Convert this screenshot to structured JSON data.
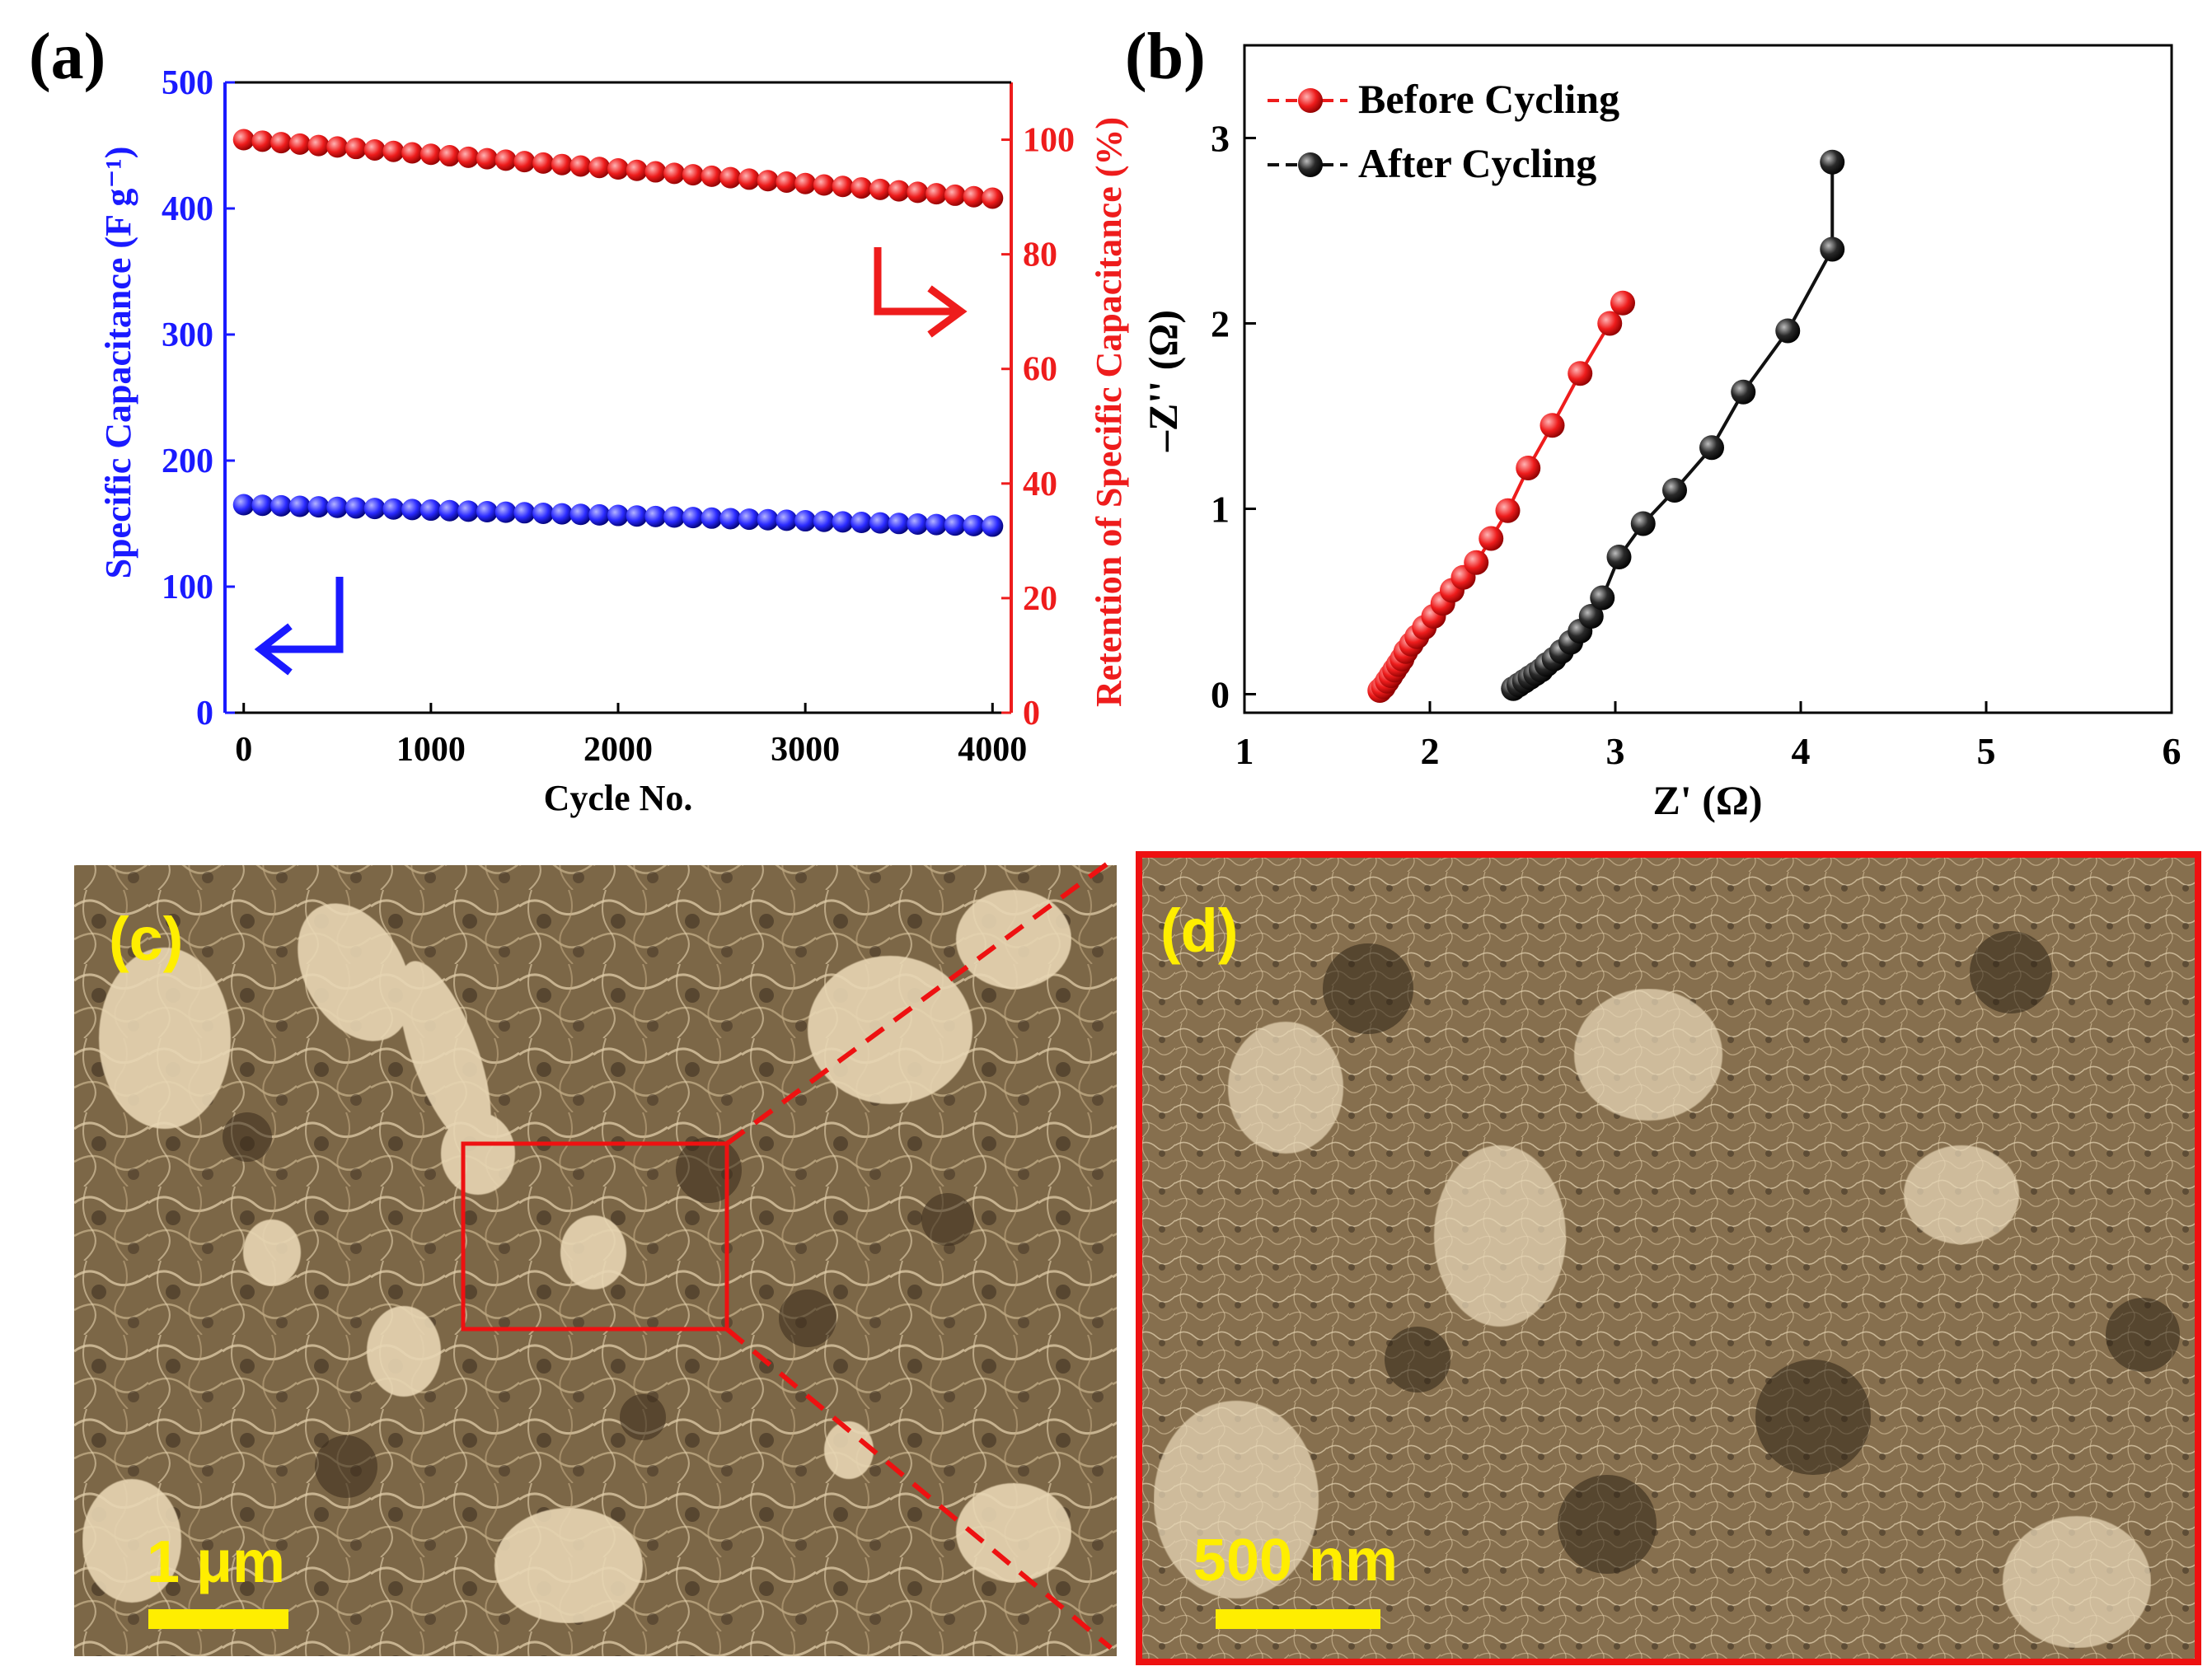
{
  "colors": {
    "left_axis": "#1a1aff",
    "right_axis": "#ee1c1c",
    "before": "#ee1c1c",
    "after": "#111111",
    "panel_label_sem": "#ffee00",
    "scale_bar": "#ffee00",
    "zoom_box": "#ee1111"
  },
  "panel_labels": {
    "a": "(a)",
    "b": "(b)",
    "c": "(c)",
    "d": "(d)"
  },
  "chart_data": [
    {
      "id": "a",
      "type": "scatter",
      "xlabel": "Cycle No.",
      "ylabel_left": "Specific Capacitance (F g⁻¹)",
      "ylabel_right": "Retention of Specific Capacitance (%)",
      "xlim": [
        -100,
        4100
      ],
      "ylim_left": [
        0,
        500
      ],
      "ylim_right": [
        0,
        110
      ],
      "xticks": [
        0,
        1000,
        2000,
        3000,
        4000
      ],
      "yticks_left": [
        0,
        100,
        200,
        300,
        400,
        500
      ],
      "yticks_right": [
        0,
        20,
        40,
        60,
        80,
        100
      ],
      "xtick_labels": [
        "0",
        "1000",
        "2000",
        "3000",
        "4000"
      ],
      "ytick_labels_left": [
        "0",
        "100",
        "200",
        "300",
        "400",
        "500"
      ],
      "ytick_labels_right": [
        "0",
        "20",
        "40",
        "60",
        "80",
        "100"
      ],
      "series": [
        {
          "name": "Specific Capacitance",
          "axis": "left",
          "color": "#1a1aff",
          "x_start": 0,
          "x_step": 100,
          "n": 41,
          "y_start": 165,
          "y_end": 148
        },
        {
          "name": "Retention",
          "axis": "right",
          "color": "#ee1c1c",
          "x_start": 0,
          "x_step": 100,
          "n": 41,
          "y_start": 100,
          "y_end": 89.8
        }
      ],
      "annotations": [
        "left-arrow pointing to left axis (blue)",
        "right-arrow pointing to right axis (red)"
      ]
    },
    {
      "id": "b",
      "type": "line",
      "xlabel": "Z' (Ω)",
      "ylabel": "–Z'' (Ω)",
      "xlim": [
        1,
        6
      ],
      "ylim": [
        -0.1,
        3.5
      ],
      "xticks": [
        1,
        2,
        3,
        4,
        5,
        6
      ],
      "yticks": [
        0,
        1,
        2,
        3
      ],
      "xtick_labels": [
        "1",
        "2",
        "3",
        "4",
        "5",
        "6"
      ],
      "ytick_labels": [
        "0",
        "1",
        "2",
        "3"
      ],
      "legend": [
        "Before Cycling",
        "After Cycling"
      ],
      "legend_position": "top-left",
      "series": [
        {
          "name": "Before Cycling",
          "color": "#ee1c1c",
          "x": [
            1.73,
            1.75,
            1.77,
            1.79,
            1.81,
            1.83,
            1.85,
            1.87,
            1.9,
            1.93,
            1.97,
            2.02,
            2.07,
            2.12,
            2.18,
            2.25,
            2.33,
            2.42,
            2.53,
            2.66,
            2.81,
            2.97,
            3.04
          ],
          "y": [
            0.02,
            0.04,
            0.07,
            0.1,
            0.13,
            0.16,
            0.19,
            0.23,
            0.27,
            0.31,
            0.36,
            0.42,
            0.49,
            0.56,
            0.63,
            0.71,
            0.84,
            0.99,
            1.22,
            1.45,
            1.73,
            2.0,
            2.11
          ]
        },
        {
          "name": "After Cycling",
          "color": "#111111",
          "x": [
            2.45,
            2.48,
            2.51,
            2.54,
            2.57,
            2.6,
            2.63,
            2.67,
            2.71,
            2.76,
            2.81,
            2.87,
            2.93,
            3.02,
            3.15,
            3.32,
            3.52,
            3.69,
            3.93,
            4.17
          ],
          "y": [
            0.03,
            0.05,
            0.07,
            0.09,
            0.11,
            0.13,
            0.16,
            0.19,
            0.23,
            0.28,
            0.34,
            0.42,
            0.52,
            0.74,
            0.92,
            1.1,
            1.33,
            1.63,
            1.96,
            2.4
          ]
        },
        {
          "name": "After Cycling (end)",
          "color": "#111111",
          "x": [
            4.17
          ],
          "y": [
            2.87
          ]
        }
      ]
    }
  ],
  "sem_c": {
    "label": "(c)",
    "scale_bar_text": "1 μm"
  },
  "sem_d": {
    "label": "(d)",
    "scale_bar_text": "500 nm"
  }
}
